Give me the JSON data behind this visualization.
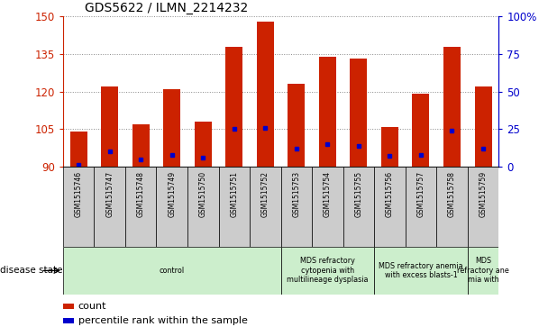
{
  "title": "GDS5622 / ILMN_2214232",
  "samples": [
    "GSM1515746",
    "GSM1515747",
    "GSM1515748",
    "GSM1515749",
    "GSM1515750",
    "GSM1515751",
    "GSM1515752",
    "GSM1515753",
    "GSM1515754",
    "GSM1515755",
    "GSM1515756",
    "GSM1515757",
    "GSM1515758",
    "GSM1515759"
  ],
  "counts": [
    104,
    122,
    107,
    121,
    108,
    138,
    148,
    123,
    134,
    133,
    106,
    119,
    138,
    122
  ],
  "percentile_ranks": [
    1,
    10,
    5,
    8,
    6,
    25,
    26,
    12,
    15,
    14,
    7,
    8,
    24,
    12
  ],
  "ymin": 90,
  "ymax": 150,
  "yticks_left": [
    90,
    105,
    120,
    135,
    150
  ],
  "yticks_right": [
    0,
    25,
    50,
    75,
    100
  ],
  "bar_color": "#cc2200",
  "dot_color": "#0000cc",
  "bar_width": 0.55,
  "group_spans": [
    {
      "start": 0,
      "end": 7,
      "label": "control"
    },
    {
      "start": 7,
      "end": 10,
      "label": "MDS refractory\ncytopenia with\nmultilineage dysplasia"
    },
    {
      "start": 10,
      "end": 13,
      "label": "MDS refractory anemia\nwith excess blasts-1"
    },
    {
      "start": 13,
      "end": 14,
      "label": "MDS\nrefractory ane\nmia with"
    }
  ],
  "group_color": "#cceecc",
  "gsm_box_color": "#cccccc",
  "legend_count_label": "count",
  "legend_percentile_label": "percentile rank within the sample",
  "disease_state_label": "disease state",
  "bar_color_left": "#cc2200",
  "tick_color_right": "#0000cc",
  "tick_color_left": "#cc2200"
}
